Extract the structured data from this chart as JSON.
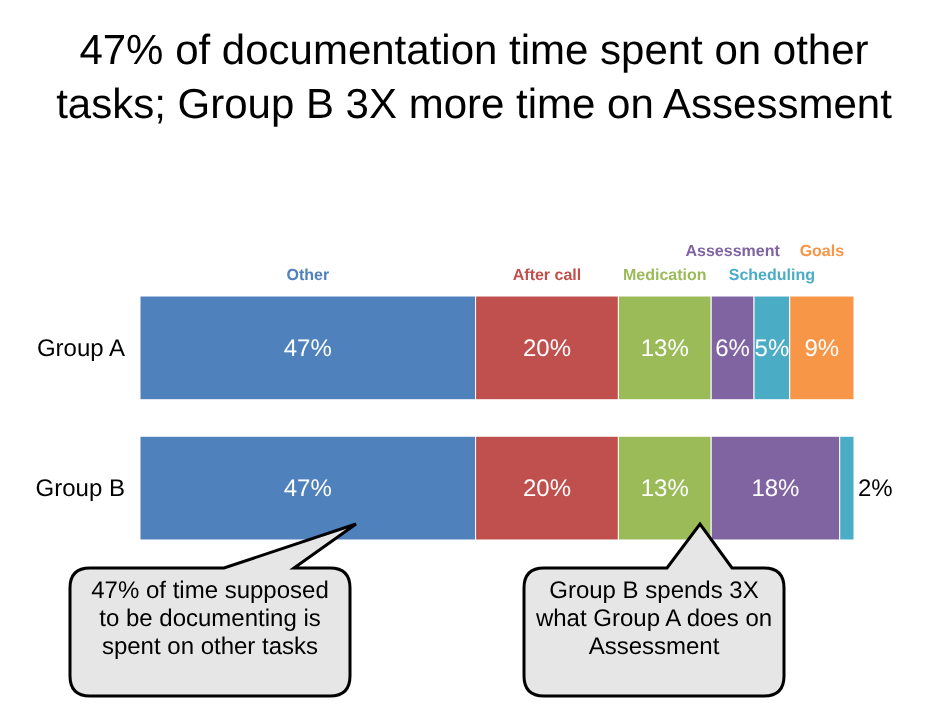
{
  "chart_data": {
    "type": "bar",
    "orientation": "horizontal",
    "stacked": true,
    "title": "47% of documentation time spent on other tasks; Group B 3X more time on Assessment",
    "categories": [
      "Group A",
      "Group B"
    ],
    "series": [
      {
        "name": "Other",
        "color": "#4f81bd",
        "values": [
          47,
          47
        ],
        "value_labels": [
          "47%",
          "47%"
        ]
      },
      {
        "name": "After call",
        "color": "#c0504d",
        "values": [
          20,
          20
        ],
        "value_labels": [
          "20%",
          "20%"
        ]
      },
      {
        "name": "Medication",
        "color": "#9bbb59",
        "values": [
          13,
          13
        ],
        "value_labels": [
          "13%",
          "13%"
        ]
      },
      {
        "name": "Assessment",
        "color": "#8064a2",
        "values": [
          6,
          18
        ],
        "value_labels": [
          "6%",
          "18%"
        ]
      },
      {
        "name": "Scheduling",
        "color": "#4bacc6",
        "values": [
          5,
          2
        ],
        "value_labels": [
          "5%",
          "2%"
        ]
      },
      {
        "name": "Goals",
        "color": "#f79646",
        "values": [
          9,
          null
        ],
        "value_labels": [
          "9%",
          null
        ]
      }
    ],
    "annotations": [
      "47% of time supposed to be documenting is spent on other tasks",
      "Group B spends 3X what Group A does on Assessment"
    ]
  }
}
